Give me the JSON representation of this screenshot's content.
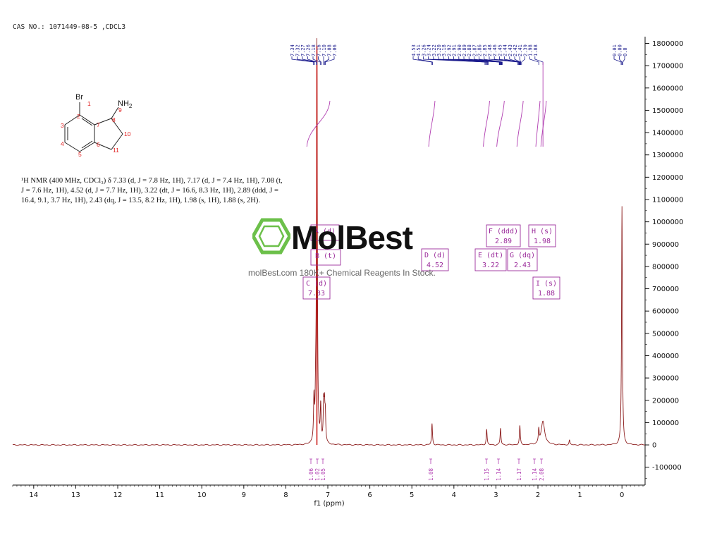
{
  "header": {
    "cas": "CAS NO.: 1071449-08-5 ,CDCL3"
  },
  "description": {
    "nmr": "¹H NMR (400 MHz, CDCl₃) δ 7.33 (d, J = 7.8 Hz, 1H), 7.17 (d, J = 7.4 Hz, 1H), 7.08 (t, J = 7.6 Hz, 1H), 4.52 (d, J = 7.7 Hz, 1H), 3.22 (dt, J = 16.6, 8.3 Hz, 1H), 2.89 (ddd, J = 16.4, 9.1, 3.7 Hz, 1H), 2.43 (dq, J = 13.5, 8.2 Hz, 1H), 1.98 (s, 1H), 1.88 (s, 2H)."
  },
  "watermark": {
    "brand": "MolBest",
    "tagline": "molBest.com 180K+ Chemical Reagents In Stock."
  },
  "structure": {
    "atoms": {
      "br": "Br",
      "nh2": "NH",
      "nh2_sub": "2"
    },
    "numbers": [
      "1",
      "2",
      "3",
      "4",
      "5",
      "6",
      "7",
      "8",
      "9",
      "10",
      "11"
    ]
  },
  "colors": {
    "spectrum": "#8b1a1a",
    "solvent": "#c8100c",
    "labels": "#1a1a8c",
    "boxes": "#9b2c9b",
    "integral": "#b03cb0"
  },
  "chart_data": {
    "type": "line",
    "xlabel": "f1 (ppm)",
    "x_ticks": [
      "14",
      "13",
      "12",
      "11",
      "10",
      "9",
      "8",
      "7",
      "6",
      "5",
      "4",
      "3",
      "2",
      "1",
      "0"
    ],
    "xlim": [
      14.5,
      -0.55
    ],
    "y_ticks": [
      "1800000",
      "1700000",
      "1600000",
      "1500000",
      "1400000",
      "1300000",
      "1200000",
      "1100000",
      "1000000",
      "900000",
      "800000",
      "700000",
      "600000",
      "500000",
      "400000",
      "300000",
      "200000",
      "100000",
      "0",
      "-100000"
    ],
    "ylim": [
      -180000,
      1830000
    ],
    "peak_labels_left": [
      "7.34",
      "7.32",
      "7.27",
      "7.26",
      "7.18",
      "7.16",
      "7.10",
      "7.08",
      "7.06"
    ],
    "peak_labels_mid": [
      "4.53",
      "4.51",
      "3.26",
      "3.24",
      "3.22",
      "3.20",
      "3.18",
      "2.92",
      "2.91",
      "2.90",
      "2.89",
      "2.88",
      "2.87",
      "2.86",
      "2.85",
      "2.48",
      "2.46",
      "2.45",
      "2.44",
      "2.43",
      "2.42",
      "2.41",
      "2.39",
      "1.98",
      "1.88"
    ],
    "peak_labels_right": [
      "0.01",
      "0.00",
      "0.0"
    ],
    "peaks": [
      {
        "ppm": 7.33,
        "height": 185000
      },
      {
        "ppm": 7.29,
        "height": 150000
      },
      {
        "ppm": 7.26,
        "height": 1790000
      },
      {
        "ppm": 7.17,
        "height": 160000
      },
      {
        "ppm": 7.1,
        "height": 165000
      },
      {
        "ppm": 7.08,
        "height": 150000
      },
      {
        "ppm": 7.06,
        "height": 120000
      },
      {
        "ppm": 4.52,
        "height": 95000
      },
      {
        "ppm": 3.22,
        "height": 70000
      },
      {
        "ppm": 2.89,
        "height": 75000
      },
      {
        "ppm": 2.43,
        "height": 85000
      },
      {
        "ppm": 1.98,
        "height": 60000
      },
      {
        "ppm": 1.88,
        "height": 105000
      },
      {
        "ppm": 1.25,
        "height": 20000
      },
      {
        "ppm": 0.0,
        "height": 1070000
      }
    ],
    "annotations": [
      {
        "id": "A",
        "mult": "d",
        "ppm": "7.17",
        "label": "A (d)"
      },
      {
        "id": "B",
        "mult": "t",
        "ppm": "7.08",
        "label": "B (t)"
      },
      {
        "id": "C",
        "mult": "d",
        "ppm": "7.33",
        "label": "C (d)"
      },
      {
        "id": "D",
        "mult": "d",
        "ppm": "4.52",
        "label": "D (d)"
      },
      {
        "id": "E",
        "mult": "dt",
        "ppm": "3.22",
        "label": "E (dt)"
      },
      {
        "id": "F",
        "mult": "ddd",
        "ppm": "2.89",
        "label": "F (ddd)"
      },
      {
        "id": "G",
        "mult": "dq",
        "ppm": "2.43",
        "label": "G (dq)"
      },
      {
        "id": "H",
        "mult": "s",
        "ppm": "1.98",
        "label": "H (s)"
      },
      {
        "id": "I",
        "mult": "s",
        "ppm": "1.88",
        "label": "I (s)"
      }
    ],
    "integrals": [
      {
        "ppm": 7.33,
        "value": "1.06"
      },
      {
        "ppm": 7.17,
        "value": "1.02"
      },
      {
        "ppm": 7.08,
        "value": "1.05"
      },
      {
        "ppm": 4.52,
        "value": "1.08"
      },
      {
        "ppm": 3.22,
        "value": "1.15"
      },
      {
        "ppm": 2.89,
        "value": "1.14"
      },
      {
        "ppm": 2.43,
        "value": "1.17"
      },
      {
        "ppm": 1.98,
        "value": "1.14"
      },
      {
        "ppm": 1.88,
        "value": "2.08"
      }
    ]
  }
}
